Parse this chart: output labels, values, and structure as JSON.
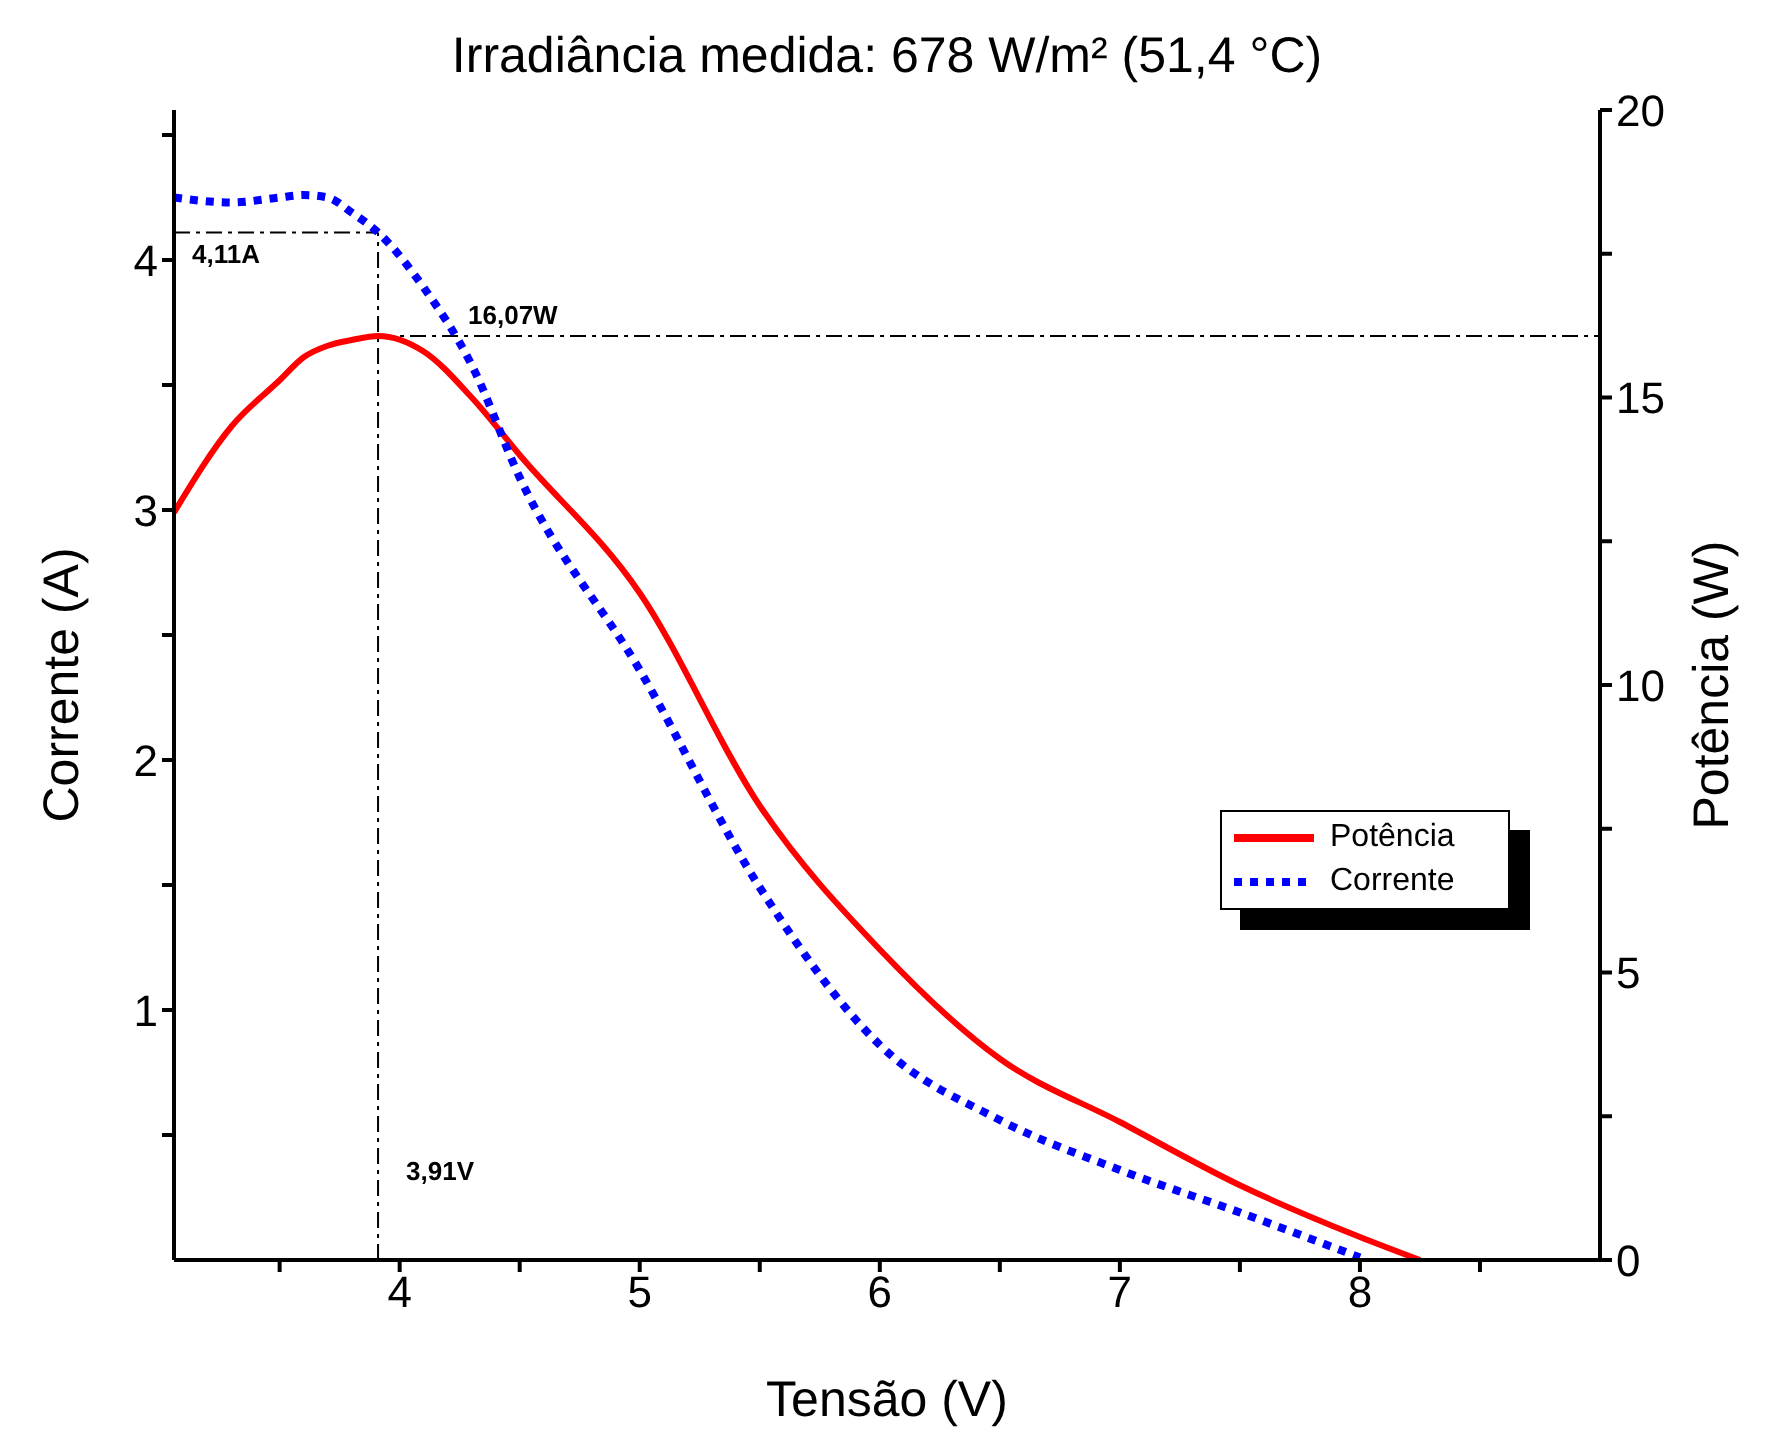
{
  "chart_data": {
    "type": "line",
    "title": "Irradiância medida: 678 W/m² (51,4 °C)",
    "xlabel": "Tensão (V)",
    "ylabel": "Corrente (A)",
    "y2label": "Potência (W)",
    "x": [
      3.06,
      3.3,
      3.5,
      3.6,
      3.7,
      3.8,
      3.91,
      4.1,
      4.3,
      4.5,
      5.0,
      5.5,
      6.0,
      6.5,
      7.0,
      7.5,
      8.0,
      8.25
    ],
    "series": [
      {
        "name": "Potência",
        "color": "#ff0000",
        "axis": "y2",
        "line_style": "solid",
        "values": [
          13.0,
          14.5,
          15.3,
          15.7,
          15.9,
          16.0,
          16.07,
          15.8,
          15.0,
          14.0,
          11.6,
          7.9,
          5.4,
          3.5,
          2.4,
          1.3,
          0.4,
          0
        ]
      },
      {
        "name": "Corrente",
        "color": "#0000ff",
        "axis": "y",
        "line_style": "dotted",
        "values": [
          4.25,
          4.23,
          4.25,
          4.26,
          4.25,
          4.19,
          4.11,
          3.89,
          3.58,
          3.13,
          2.36,
          1.49,
          0.86,
          0.56,
          0.36,
          0.19,
          0.01,
          null
        ]
      }
    ],
    "xlim": [
      3.06,
      9
    ],
    "xticks": [
      {
        "value": 3.5,
        "label": null
      },
      4,
      {
        "value": 4.5,
        "label": null
      },
      5,
      {
        "value": 5.5,
        "label": null
      },
      6,
      {
        "value": 6.5,
        "label": null
      },
      7,
      {
        "value": 7.5,
        "label": null
      },
      8,
      {
        "value": 8.5,
        "label": null
      }
    ],
    "ylim": [
      0,
      4.6
    ],
    "yticks": [
      {
        "value": 0.5,
        "label": null
      },
      1,
      {
        "value": 1.5,
        "label": null
      },
      2,
      {
        "value": 2.5,
        "label": null
      },
      3,
      {
        "value": 3.5,
        "label": null
      },
      4,
      {
        "value": 4.5,
        "label": null
      }
    ],
    "y2lim": [
      0,
      20
    ],
    "y2ticks": [
      0,
      {
        "value": 2.5,
        "label": null
      },
      5,
      {
        "value": 7.5,
        "label": null
      },
      10,
      {
        "value": 12.5,
        "label": null
      },
      15,
      {
        "value": 17.5,
        "label": null
      },
      20
    ],
    "ref_lines": [
      {
        "axis": "x",
        "value": 3.91,
        "label": "3,91V",
        "color": "#000000",
        "line_style": "dashed"
      },
      {
        "axis": "y",
        "value": 4.11,
        "label": "4,11A",
        "color": "#000000",
        "line_style": "dashed"
      },
      {
        "axis": "y2",
        "value": 16.07,
        "label": "16,07W",
        "color": "#000000",
        "line_style": "dashed"
      }
    ],
    "grid": false,
    "legend": "right",
    "marker": "none"
  }
}
